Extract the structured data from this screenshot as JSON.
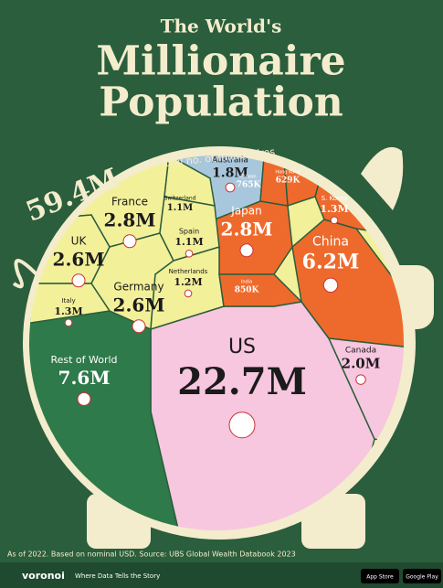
{
  "chart_data": {
    "type": "voronoi",
    "title_line1": "The World's",
    "title_line2": "Millionaire",
    "title_line3": "Population",
    "total": 59.4,
    "total_label": "59.4M",
    "total_note": "Total no. of millionaires",
    "categories": [
      "US",
      "Rest of World",
      "China",
      "France",
      "Japan",
      "UK",
      "Germany",
      "Canada",
      "Australia",
      "Italy",
      "S. Korea",
      "Netherlands",
      "Switzerland",
      "Spain",
      "Taiwan",
      "Hong Kong",
      "India"
    ],
    "values": [
      22.7,
      7.6,
      6.2,
      2.8,
      2.8,
      2.6,
      2.6,
      2.0,
      1.8,
      1.3,
      1.3,
      1.2,
      1.1,
      1.1,
      0.765,
      0.629,
      0.85
    ],
    "value_labels": [
      "22.7M",
      "7.6M",
      "6.2M",
      "2.8M",
      "2.8M",
      "2.6M",
      "2.6M",
      "2.0M",
      "1.8M",
      "1.3M",
      "1.3M",
      "1.2M",
      "1.1M",
      "1.1M",
      "765K",
      "629K",
      "850K"
    ],
    "colors": [
      "#f7c6df",
      "#2e7a4a",
      "#ee6a2c",
      "#f3f09a",
      "#ee6a2c",
      "#f3f09a",
      "#f3f09a",
      "#f7c6df",
      "#a9c7dc",
      "#f3f09a",
      "#ee6a2c",
      "#f3f09a",
      "#f3f09a",
      "#f3f09a",
      "#ee6a2c",
      "#ee6a2c",
      "#ee6a2c"
    ],
    "source": "As of 2022. Based on nominal USD. Source: UBS Global Wealth Databook 2023",
    "brand": "voronoi",
    "tagline": "Where Data Tells the Story",
    "app_store": "App Store",
    "google_play": "Google Play"
  }
}
